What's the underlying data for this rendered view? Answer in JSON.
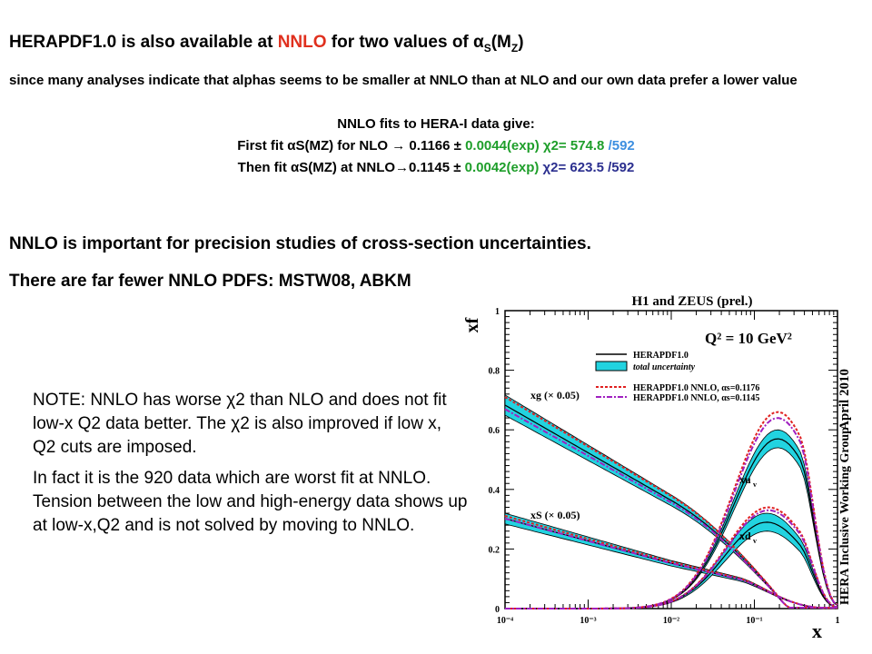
{
  "title": {
    "part1": "HERAPDF1.0 is also available at ",
    "nnlo": "NNLO",
    "part2": " for two values of α",
    "sub_s": "S",
    "part3": "(M",
    "sub_z": "Z",
    "part4": ")"
  },
  "intro": "since many analyses indicate that alphas seems to be smaller at NNLO than at NLO and our own data prefer a lower value",
  "fits": {
    "header": "NNLO fits to HERA-I data give:",
    "line1": {
      "a": "First fit αS(MZ) for NLO → 0.1166 ± ",
      "b": "0.0044(exp)",
      "c": " χ2= 574.8 ",
      "d": "/592"
    },
    "line2": {
      "a": "Then fit αS(MZ) at NNLO→0.1145 ± ",
      "b": "0.0042(exp)",
      "c": " χ2= 623.5 /592"
    }
  },
  "statements": [
    "NNLO is important for precision studies of cross-section uncertainties.",
    "There are far fewer NNLO PDFS: MSTW08, ABKM"
  ],
  "note": {
    "p1": "NOTE:  NNLO has worse χ2 than NLO and does not fit low-x Q2 data better. The χ2 is also improved if low x, Q2 cuts are imposed.",
    "p2": "In fact it is the 920 data which are worst fit at NNLO. Tension between the low and high-energy data shows up at low-x,Q2 and is not solved by moving to NNLO."
  },
  "plot": {
    "header": "H1 and ZEUS (prel.)",
    "q2": "Q² = 10 GeV²",
    "side_date": "April 2010",
    "side_group": "HERA Inclusive Working Group",
    "ylabel": "xf",
    "xlabel": "x",
    "yticks": [
      "0",
      "0.2",
      "0.4",
      "0.6",
      "0.8",
      "1"
    ],
    "xticks": [
      "10⁻⁴",
      "10⁻³",
      "10⁻²",
      "10⁻¹",
      "1"
    ],
    "legend": [
      "HERAPDF1.0",
      "total uncertainty",
      "HERAPDF1.0 NNLO, αs=0.1176",
      "HERAPDF1.0 NNLO, αs=0.1145"
    ],
    "labels": [
      "xg (× 0.05)",
      "xS (× 0.05)",
      "xu",
      "xd"
    ],
    "colors": {
      "band": "#22d3e0",
      "nnlo1": "#e02020",
      "nnlo2": "#a020c0"
    }
  },
  "chart_data": {
    "type": "line",
    "xscale": "log",
    "xlim": [
      0.0001,
      1
    ],
    "ylim": [
      0,
      1
    ],
    "series": [
      {
        "name": "xg (× 0.05)",
        "x": [
          0.0001,
          0.001,
          0.01,
          0.1,
          0.5
        ],
        "y": [
          0.68,
          0.5,
          0.33,
          0.12,
          0.01
        ]
      },
      {
        "name": "xS (× 0.05)",
        "x": [
          0.0001,
          0.001,
          0.01,
          0.1,
          0.5
        ],
        "y": [
          0.3,
          0.21,
          0.12,
          0.04,
          0.0
        ]
      },
      {
        "name": "xu",
        "x": [
          0.0001,
          0.001,
          0.01,
          0.1,
          0.2,
          0.5
        ],
        "y": [
          0.0,
          0.01,
          0.07,
          0.35,
          0.57,
          0.3
        ]
      },
      {
        "name": "xd",
        "x": [
          0.0001,
          0.001,
          0.01,
          0.1,
          0.15,
          0.5
        ],
        "y": [
          0.0,
          0.01,
          0.04,
          0.26,
          0.29,
          0.05
        ]
      }
    ]
  }
}
